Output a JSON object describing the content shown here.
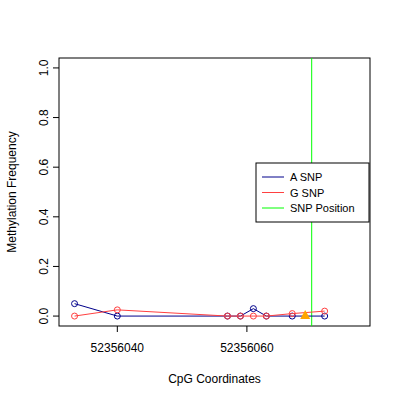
{
  "chart_data": {
    "type": "scatter",
    "x_label": "CpG Coordinates",
    "y_label": "Methylation Frequency",
    "xlim": [
      52356031,
      52356079
    ],
    "ylim": [
      -0.04,
      1.04
    ],
    "xticks": [
      52356040,
      52356060
    ],
    "yticks": [
      {
        "value": 0,
        "label": "0.0"
      },
      0.2,
      0.4,
      0.6,
      0.8,
      {
        "value": 1,
        "label": "1.0"
      }
    ],
    "legend": "right",
    "marker": "circle",
    "series": [
      {
        "name": "A SNP",
        "color": "#00008b",
        "line_style": "solid",
        "x": [
          52356033.4,
          52356040,
          52356057,
          52356059,
          52356061,
          52356063,
          52356067,
          52356072
        ],
        "values": [
          0.05,
          0,
          0,
          0,
          0.03,
          0,
          0,
          0
        ]
      },
      {
        "name": "G SNP",
        "color": "#ff4040",
        "line_style": "solid",
        "x": [
          52356033.4,
          52356040,
          52356057,
          52356059,
          52356061,
          52356063,
          52356067,
          52356072
        ],
        "values": [
          0,
          0.025,
          0,
          0,
          0,
          0,
          0.01,
          0.02
        ]
      }
    ],
    "snp_position": {
      "name": "SNP Position",
      "color": "#00ff00",
      "x": 52356070
    },
    "annotations": [
      {
        "type": "triangle",
        "color": "#ffa500",
        "x": 52356069,
        "y": 0
      }
    ]
  }
}
